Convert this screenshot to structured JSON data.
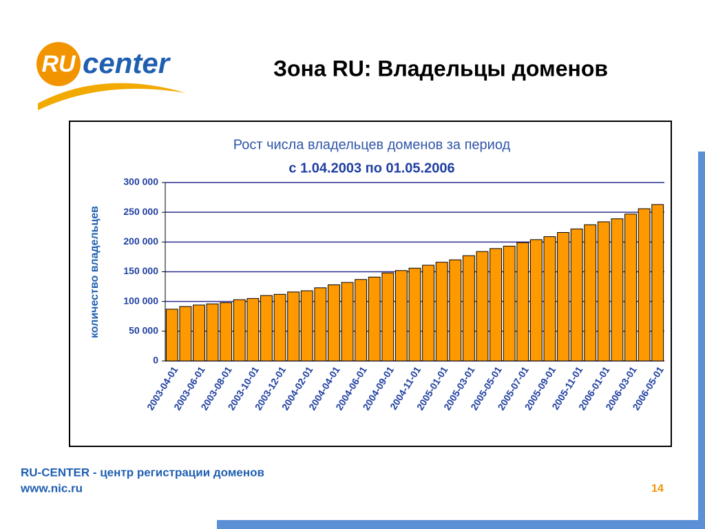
{
  "slide": {
    "logo_ru": "RU",
    "logo_center": "center",
    "heading": "Зона RU: Владельцы доменов",
    "footer_line1": "RU-CENTER - центр регистрации доменов",
    "footer_line2": "www.nic.ru",
    "page_number": "14"
  },
  "chart_data": {
    "type": "bar",
    "title": [
      "Рост числа владельцев доменов за период",
      "с 1.04.2003 по 01.05.2006"
    ],
    "y_label": "количество владельцев",
    "categories": [
      "2003-04-01",
      null,
      "2003-06-01",
      null,
      "2003-08-01",
      null,
      "2003-10-01",
      null,
      "2003-12-01",
      null,
      "2004-02-01",
      null,
      "2004-04-01",
      null,
      "2004-06-01",
      null,
      "2004-09-01",
      null,
      "2004-11-01",
      null,
      "2005-01-01",
      null,
      "2005-03-01",
      null,
      "2005-05-01",
      null,
      "2005-07-01",
      null,
      "2005-09-01",
      null,
      "2005-11-01",
      null,
      "2006-01-01",
      null,
      "2006-03-01",
      null,
      "2006-05-01"
    ],
    "values": [
      87000,
      91500,
      94000,
      96000,
      98000,
      103000,
      105000,
      110000,
      112000,
      116000,
      118000,
      123000,
      128000,
      132000,
      137000,
      141000,
      148000,
      152000,
      156000,
      161000,
      166000,
      170000,
      177000,
      184000,
      189000,
      193000,
      199000,
      204000,
      209000,
      216000,
      222000,
      229000,
      234000,
      239000,
      247000,
      256000,
      263000
    ],
    "color": "#ff9900",
    "ylim": [
      0,
      300000
    ],
    "yticks": [
      0,
      {
        "value": 50000,
        "label": "50 000"
      },
      {
        "value": 100000,
        "label": "100 000"
      },
      {
        "value": 150000,
        "label": "150 000"
      },
      {
        "value": 200000,
        "label": "200 000"
      },
      {
        "value": 250000,
        "label": "250 000"
      },
      {
        "value": 300000,
        "label": "300 000"
      }
    ],
    "grid": true
  }
}
